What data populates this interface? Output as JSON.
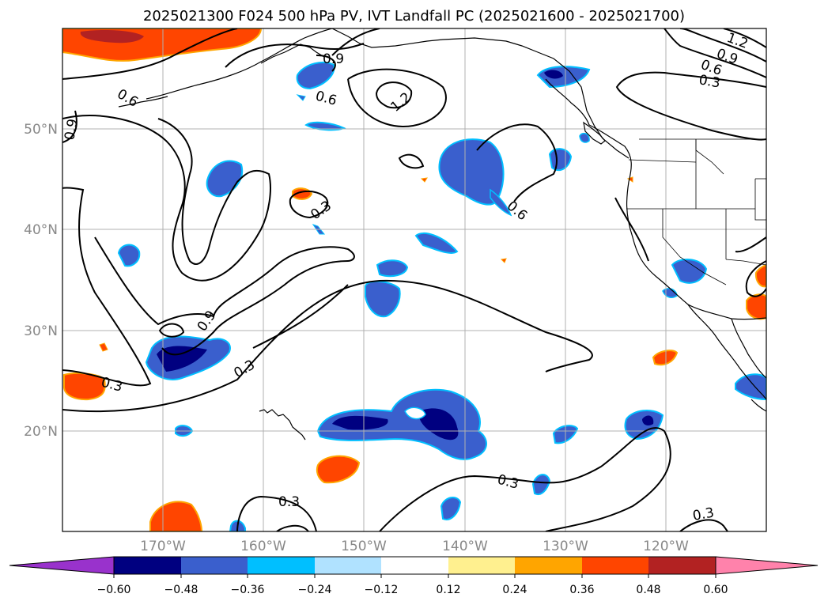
{
  "title": "2025021300 F024 500 hPa PV, IVT Landfall PC (2025021600 - 2025021700)",
  "map": {
    "lon_range": [
      -180,
      -110
    ],
    "lat_range": [
      10,
      60
    ],
    "lat_ticks": [
      "50°N",
      "40°N",
      "30°N",
      "20°N"
    ],
    "lon_ticks": [
      "170°W",
      "160°W",
      "150°W",
      "140°W",
      "130°W",
      "120°W"
    ],
    "grid": true
  },
  "contour_labels": [
    "0.6",
    "0.9",
    "0.9",
    "0.6",
    "1.2",
    "1.2",
    "0.9",
    "0.6",
    "0.3",
    "0.3",
    "0.9",
    "0.3",
    "0.3",
    "0.6",
    "0.3",
    "0.3",
    "0.3"
  ],
  "colorbar": {
    "tick_labels": [
      "−0.60",
      "−0.48",
      "−0.36",
      "−0.24",
      "−0.12",
      "0.12",
      "0.24",
      "0.36",
      "0.48",
      "0.60"
    ],
    "colors": [
      "#9932cc",
      "#000080",
      "#3a5fcd",
      "#00bfff",
      "#b0e2ff",
      "#ffffff",
      "#fff08f",
      "#ffa500",
      "#ff4500",
      "#b22222",
      "#ff82ab"
    ],
    "extend": "both"
  },
  "colors": {
    "coast": "#000000",
    "contour": "#000000",
    "grid": "#b0b0b0",
    "tick_label": "#888888"
  }
}
